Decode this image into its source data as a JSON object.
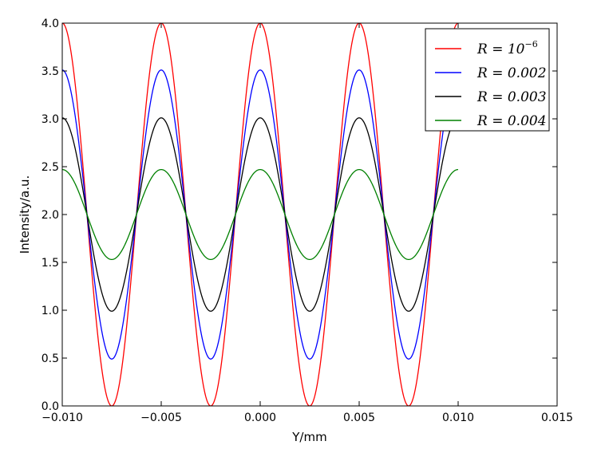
{
  "chart_data": {
    "type": "line",
    "xlabel": "Y/mm",
    "ylabel": "Intensity/a.u.",
    "xlim": [
      -0.01,
      0.015
    ],
    "ylim": [
      0.0,
      4.0
    ],
    "x_ticks": [
      "−0.010",
      "−0.005",
      "0.000",
      "0.005",
      "0.010",
      "0.015"
    ],
    "y_ticks": [
      "0.0",
      "0.5",
      "1.0",
      "1.5",
      "2.0",
      "2.5",
      "3.0",
      "3.5",
      "4.0"
    ],
    "x_tick_values": [
      -0.01,
      -0.005,
      0.0,
      0.005,
      0.01,
      0.015
    ],
    "y_tick_values": [
      0.0,
      0.5,
      1.0,
      1.5,
      2.0,
      2.5,
      3.0,
      3.5,
      4.0
    ],
    "period": 0.005,
    "x_range": [
      -0.01,
      0.01
    ],
    "grid": false,
    "legend_position": "top-right",
    "series": [
      {
        "name": "R=10⁻⁶",
        "legend_base": "R = 10",
        "legend_sup": "−6",
        "color": "#ff0000",
        "max": 4.0,
        "min": 0.0
      },
      {
        "name": "R=0.002",
        "legend_base": "R = 0.002",
        "legend_sup": "",
        "color": "#0000ff",
        "max": 3.51,
        "min": 0.49
      },
      {
        "name": "R=0.003",
        "legend_base": "R = 0.003",
        "legend_sup": "",
        "color": "#000000",
        "max": 3.01,
        "min": 0.99
      },
      {
        "name": "R=0.004",
        "legend_base": "R = 0.004",
        "legend_sup": "",
        "color": "#008000",
        "max": 2.47,
        "min": 1.53
      }
    ]
  }
}
